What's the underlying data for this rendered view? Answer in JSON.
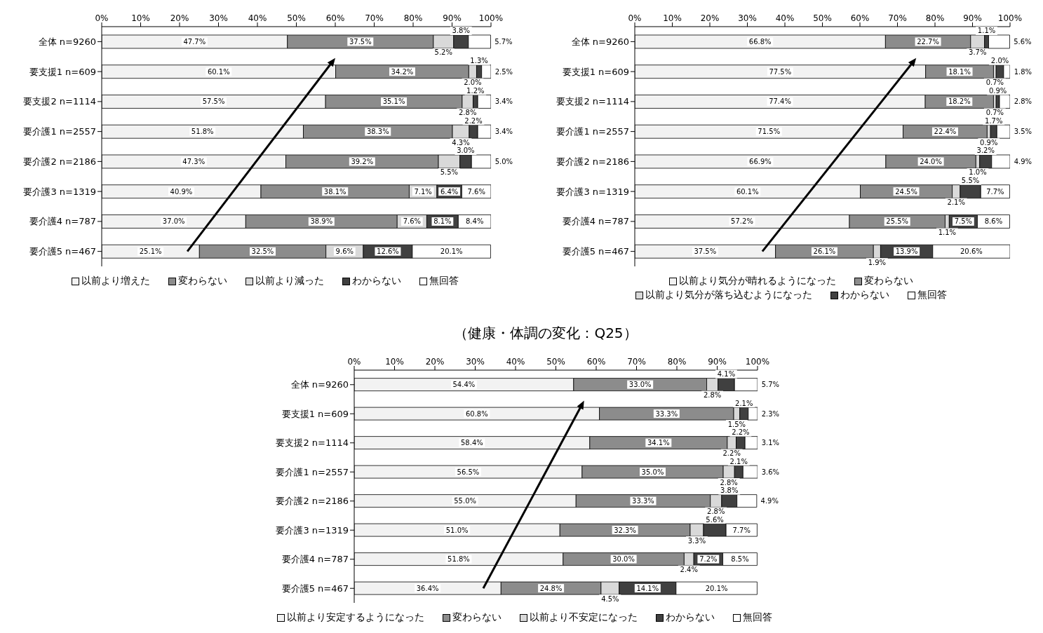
{
  "chart_data": [
    {
      "type": "bar",
      "orientation": "horizontal",
      "stacked": true,
      "legend": "bottom",
      "categories": [
        "全体 n=9260",
        "要支援1 n=609",
        "要支援2 n=1114",
        "要介護1 n=2557",
        "要介護2 n=2186",
        "要介護3 n=1319",
        "要介護4 n=787",
        "要介護5 n=467"
      ],
      "xlim": [
        0,
        100
      ],
      "xticks": [
        {
          "value": 0,
          "label": "0%"
        },
        {
          "value": 10,
          "label": "10%"
        },
        {
          "value": 20,
          "label": "20%"
        },
        {
          "value": 30,
          "label": "30%"
        },
        {
          "value": 40,
          "label": "40%"
        },
        {
          "value": 50,
          "label": "50%"
        },
        {
          "value": 60,
          "label": "60%"
        },
        {
          "value": 70,
          "label": "70%"
        },
        {
          "value": 80,
          "label": "80%"
        },
        {
          "value": 90,
          "label": "90%"
        },
        {
          "value": 100,
          "label": "100%"
        }
      ],
      "series": [
        {
          "name": "以前より増えた",
          "color": "#f2f2f2",
          "values": [
            47.7,
            60.1,
            57.5,
            51.8,
            47.3,
            40.9,
            37.0,
            25.1
          ],
          "value_labels": [
            "47.7%",
            "60.1%",
            "57.5%",
            "51.8%",
            "47.3%",
            "40.9%",
            "37.0%",
            "25.1%"
          ]
        },
        {
          "name": "変わらない",
          "color": "#8c8c8c",
          "values": [
            37.5,
            34.2,
            35.1,
            38.3,
            39.2,
            38.1,
            38.9,
            32.5
          ],
          "value_labels": [
            "37.5%",
            "34.2%",
            "35.1%",
            "38.3%",
            "39.2%",
            "38.1%",
            "38.9%",
            "32.5%"
          ]
        },
        {
          "name": "以前より減った",
          "color": "#d9d9d9",
          "values": [
            5.2,
            2.0,
            2.8,
            4.3,
            5.5,
            7.1,
            7.6,
            9.6
          ],
          "value_labels": [
            "5.2%",
            "2.0%",
            "2.8%",
            "4.3%",
            "5.5%",
            "7.1%",
            "7.6%",
            "9.6%"
          ]
        },
        {
          "name": "わからない",
          "color": "#404040",
          "values": [
            3.8,
            1.3,
            1.2,
            2.2,
            3.0,
            6.4,
            8.1,
            12.6
          ],
          "value_labels": [
            "3.8%",
            "1.3%",
            "1.2%",
            "2.2%",
            "3.0%",
            "6.4%",
            "8.1%",
            "12.6%"
          ]
        },
        {
          "name": "無回答",
          "color": "#ffffff",
          "values": [
            5.7,
            2.5,
            3.4,
            3.4,
            5.0,
            7.6,
            8.4,
            20.1
          ],
          "value_labels": [
            "5.7%",
            "2.5%",
            "3.4%",
            "3.4%",
            "5.0%",
            "7.6%",
            "8.4%",
            "20.1%"
          ]
        }
      ]
    },
    {
      "type": "bar",
      "orientation": "horizontal",
      "stacked": true,
      "legend": "bottom",
      "categories": [
        "全体 n=9260",
        "要支援1 n=609",
        "要支援2 n=1114",
        "要介護1 n=2557",
        "要介護2 n=2186",
        "要介護3 n=1319",
        "要介護4 n=787",
        "要介護5 n=467"
      ],
      "xlim": [
        0,
        100
      ],
      "xticks": [
        {
          "value": 0,
          "label": "0%"
        },
        {
          "value": 10,
          "label": "10%"
        },
        {
          "value": 20,
          "label": "20%"
        },
        {
          "value": 30,
          "label": "30%"
        },
        {
          "value": 40,
          "label": "40%"
        },
        {
          "value": 50,
          "label": "50%"
        },
        {
          "value": 60,
          "label": "60%"
        },
        {
          "value": 70,
          "label": "70%"
        },
        {
          "value": 80,
          "label": "80%"
        },
        {
          "value": 90,
          "label": "90%"
        },
        {
          "value": 100,
          "label": "100%"
        }
      ],
      "series": [
        {
          "name": "以前より気分が晴れるようになった",
          "color": "#f2f2f2",
          "values": [
            66.8,
            77.5,
            77.4,
            71.5,
            66.9,
            60.1,
            57.2,
            37.5
          ],
          "value_labels": [
            "66.8%",
            "77.5%",
            "77.4%",
            "71.5%",
            "66.9%",
            "60.1%",
            "57.2%",
            "37.5%"
          ]
        },
        {
          "name": "変わらない",
          "color": "#8c8c8c",
          "values": [
            22.7,
            18.1,
            18.2,
            22.4,
            24.0,
            24.5,
            25.5,
            26.1
          ],
          "value_labels": [
            "22.7%",
            "18.1%",
            "18.2%",
            "22.4%",
            "24.0%",
            "24.5%",
            "25.5%",
            "26.1%"
          ]
        },
        {
          "name": "以前より気分が落ち込むようになった",
          "color": "#d9d9d9",
          "values": [
            3.7,
            0.7,
            0.7,
            0.9,
            1.0,
            2.1,
            1.1,
            1.9
          ],
          "value_labels": [
            "3.7%",
            "0.7%",
            "0.7%",
            "0.9%",
            "1.0%",
            "2.1%",
            "1.1%",
            "1.9%"
          ]
        },
        {
          "name": "わからない",
          "color": "#404040",
          "values": [
            1.1,
            2.0,
            0.9,
            1.7,
            3.2,
            5.5,
            7.5,
            13.9
          ],
          "value_labels": [
            "1.1%",
            "2.0%",
            "0.9%",
            "1.7%",
            "3.2%",
            "5.5%",
            "7.5%",
            "13.9%"
          ]
        },
        {
          "name": "無回答",
          "color": "#ffffff",
          "values": [
            5.6,
            1.8,
            2.8,
            3.5,
            4.9,
            7.7,
            8.6,
            20.6
          ],
          "value_labels": [
            "5.6%",
            "1.8%",
            "2.8%",
            "3.5%",
            "4.9%",
            "7.7%",
            "8.6%",
            "20.6%"
          ]
        }
      ]
    },
    {
      "type": "bar",
      "orientation": "horizontal",
      "stacked": true,
      "legend": "bottom",
      "title": "（健康・体調の変化：Q25）",
      "categories": [
        "全体 n=9260",
        "要支援1 n=609",
        "要支援2 n=1114",
        "要介護1 n=2557",
        "要介護2 n=2186",
        "要介護3 n=1319",
        "要介護4 n=787",
        "要介護5 n=467"
      ],
      "xlim": [
        0,
        100
      ],
      "xticks": [
        {
          "value": 0,
          "label": "0%"
        },
        {
          "value": 10,
          "label": "10%"
        },
        {
          "value": 20,
          "label": "20%"
        },
        {
          "value": 30,
          "label": "30%"
        },
        {
          "value": 40,
          "label": "40%"
        },
        {
          "value": 50,
          "label": "50%"
        },
        {
          "value": 60,
          "label": "60%"
        },
        {
          "value": 70,
          "label": "70%"
        },
        {
          "value": 80,
          "label": "80%"
        },
        {
          "value": 90,
          "label": "90%"
        },
        {
          "value": 100,
          "label": "100%"
        }
      ],
      "series": [
        {
          "name": "以前より安定するようになった",
          "color": "#f2f2f2",
          "values": [
            54.4,
            60.8,
            58.4,
            56.5,
            55.0,
            51.0,
            51.8,
            36.4
          ],
          "value_labels": [
            "54.4%",
            "60.8%",
            "58.4%",
            "56.5%",
            "55.0%",
            "51.0%",
            "51.8%",
            "36.4%"
          ]
        },
        {
          "name": "変わらない",
          "color": "#8c8c8c",
          "values": [
            33.0,
            33.3,
            34.1,
            35.0,
            33.3,
            32.3,
            30.0,
            24.8
          ],
          "value_labels": [
            "33.0%",
            "33.3%",
            "34.1%",
            "35.0%",
            "33.3%",
            "32.3%",
            "30.0%",
            "24.8%"
          ]
        },
        {
          "name": "以前より不安定になった",
          "color": "#d9d9d9",
          "values": [
            2.8,
            1.5,
            2.2,
            2.8,
            2.8,
            3.3,
            2.4,
            4.5
          ],
          "value_labels": [
            "2.8%",
            "1.5%",
            "2.2%",
            "2.8%",
            "2.8%",
            "3.3%",
            "2.4%",
            "4.5%"
          ]
        },
        {
          "name": "わからない",
          "color": "#404040",
          "values": [
            4.1,
            2.1,
            2.2,
            2.1,
            3.8,
            5.6,
            7.2,
            14.1
          ],
          "value_labels": [
            "4.1%",
            "2.1%",
            "2.2%",
            "2.1%",
            "3.8%",
            "5.6%",
            "7.2%",
            "14.1%"
          ]
        },
        {
          "name": "無回答",
          "color": "#ffffff",
          "values": [
            5.7,
            2.3,
            3.1,
            3.6,
            4.9,
            7.7,
            8.5,
            20.1
          ],
          "value_labels": [
            "5.7%",
            "2.3%",
            "3.1%",
            "3.6%",
            "4.9%",
            "7.7%",
            "8.5%",
            "20.1%"
          ]
        }
      ]
    }
  ]
}
